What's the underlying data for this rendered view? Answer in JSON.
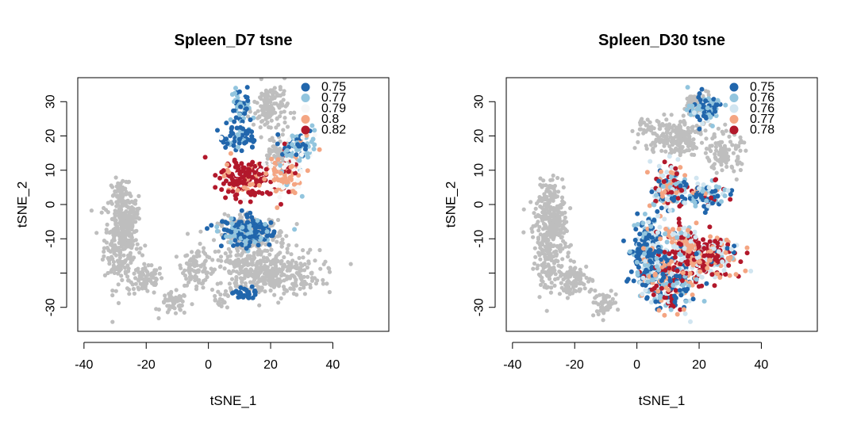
{
  "chart_data": [
    {
      "type": "scatter",
      "title": "Spleen_D7 tsne",
      "xlabel": "tSNE_1",
      "ylabel": "tSNE_2",
      "xlim": [
        -42,
        58
      ],
      "ylim": [
        -37,
        37
      ],
      "xticks": [
        -40,
        -20,
        0,
        20,
        40
      ],
      "xtick_labels": [
        "-40",
        "-20",
        "0",
        "20",
        "40"
      ],
      "yticks": [
        30,
        20,
        10,
        0,
        -10,
        -30
      ],
      "ytick_labels": [
        "30",
        "20",
        "10",
        "0",
        "-10",
        "-30"
      ],
      "grid": false,
      "legend_position": "top-right",
      "background_color": "#bebebe",
      "series": [
        {
          "name": "0.75",
          "color": "#2166ac"
        },
        {
          "name": "0.77",
          "color": "#92c5de"
        },
        {
          "name": "0.79",
          "color": "#f7f7f7"
        },
        {
          "name": "0.8",
          "color": "#f4a582"
        },
        {
          "name": "0.82",
          "color": "#b2182b"
        }
      ],
      "background_clusters": [
        {
          "cx": -28,
          "cy": -10,
          "rx": 5,
          "ry": 13
        },
        {
          "cx": -28,
          "cy": 3,
          "rx": 3,
          "ry": 3
        },
        {
          "cx": -20,
          "cy": -22,
          "rx": 5,
          "ry": 4
        },
        {
          "cx": -11,
          "cy": -29,
          "rx": 4,
          "ry": 3
        },
        {
          "cx": -4,
          "cy": -18,
          "rx": 4,
          "ry": 5
        },
        {
          "cx": 18,
          "cy": -20,
          "rx": 16,
          "ry": 6
        },
        {
          "cx": 14,
          "cy": -9,
          "rx": 10,
          "ry": 5
        },
        {
          "cx": 20,
          "cy": 28,
          "rx": 5,
          "ry": 7
        },
        {
          "cx": 22,
          "cy": 14,
          "rx": 4,
          "ry": 4
        },
        {
          "cx": -26,
          "cy": -4,
          "rx": 3,
          "ry": 6
        },
        {
          "cx": 4,
          "cy": -28,
          "rx": 2,
          "ry": 2
        }
      ],
      "colored_clusters": [
        {
          "cx": 10,
          "cy": 28,
          "rx": 3,
          "ry": 5,
          "weights": [
            0.5,
            0.45,
            0.05,
            0,
            0
          ]
        },
        {
          "cx": 10,
          "cy": 19,
          "rx": 5,
          "ry": 3,
          "weights": [
            0.8,
            0.15,
            0.05,
            0,
            0
          ]
        },
        {
          "cx": 12,
          "cy": 8,
          "rx": 7,
          "ry": 5,
          "weights": [
            0,
            0,
            0.05,
            0.15,
            0.8
          ]
        },
        {
          "cx": 25,
          "cy": 9,
          "rx": 5,
          "ry": 6,
          "weights": [
            0,
            0.05,
            0.3,
            0.55,
            0.1
          ]
        },
        {
          "cx": 29,
          "cy": 17,
          "rx": 5,
          "ry": 4,
          "weights": [
            0.25,
            0.5,
            0.15,
            0.1,
            0
          ]
        },
        {
          "cx": 12,
          "cy": -8,
          "rx": 8,
          "ry": 4,
          "weights": [
            0.7,
            0.3,
            0,
            0,
            0
          ]
        },
        {
          "cx": 12,
          "cy": -26,
          "rx": 3,
          "ry": 2,
          "weights": [
            0.9,
            0.1,
            0,
            0,
            0
          ]
        }
      ]
    },
    {
      "type": "scatter",
      "title": "Spleen_D30 tsne",
      "xlabel": "tSNE_1",
      "ylabel": "tSNE_2",
      "xlim": [
        -42,
        58
      ],
      "ylim": [
        -37,
        37
      ],
      "xticks": [
        -40,
        -20,
        0,
        20,
        40
      ],
      "xtick_labels": [
        "-40",
        "-20",
        "0",
        "20",
        "40"
      ],
      "yticks": [
        30,
        20,
        10,
        0,
        -10,
        -30
      ],
      "ytick_labels": [
        "30",
        "20",
        "10",
        "0",
        "-10",
        "-30"
      ],
      "grid": false,
      "legend_position": "top-right",
      "background_color": "#bebebe",
      "series": [
        {
          "name": "0.75",
          "color": "#2166ac"
        },
        {
          "name": "0.76",
          "color": "#92c5de"
        },
        {
          "name": "0.76",
          "color": "#d1e5f0"
        },
        {
          "name": "0.77",
          "color": "#f4a582"
        },
        {
          "name": "0.78",
          "color": "#b2182b"
        }
      ],
      "background_clusters": [
        {
          "cx": -28,
          "cy": -10,
          "rx": 5,
          "ry": 13
        },
        {
          "cx": -28,
          "cy": 3,
          "rx": 3,
          "ry": 3
        },
        {
          "cx": -20,
          "cy": -22,
          "rx": 5,
          "ry": 4
        },
        {
          "cx": -11,
          "cy": -29,
          "rx": 4,
          "ry": 3
        },
        {
          "cx": 12,
          "cy": 20,
          "rx": 9,
          "ry": 5
        },
        {
          "cx": 20,
          "cy": 29,
          "rx": 4,
          "ry": 4
        },
        {
          "cx": 28,
          "cy": 15,
          "rx": 5,
          "ry": 5
        },
        {
          "cx": -26,
          "cy": -4,
          "rx": 3,
          "ry": 6
        },
        {
          "cx": 2,
          "cy": 23,
          "rx": 2,
          "ry": 2
        }
      ],
      "colored_clusters": [
        {
          "cx": 22,
          "cy": 28,
          "rx": 5,
          "ry": 4,
          "weights": [
            0.45,
            0.4,
            0.15,
            0,
            0
          ]
        },
        {
          "cx": 10,
          "cy": 5,
          "rx": 5,
          "ry": 6,
          "weights": [
            0.15,
            0.2,
            0.25,
            0.25,
            0.15
          ]
        },
        {
          "cx": 22,
          "cy": 3,
          "rx": 6,
          "ry": 4,
          "weights": [
            0.4,
            0.3,
            0.15,
            0.05,
            0.1
          ]
        },
        {
          "cx": 4,
          "cy": -14,
          "rx": 6,
          "ry": 9,
          "weights": [
            0.55,
            0.25,
            0.15,
            0.03,
            0.02
          ]
        },
        {
          "cx": 10,
          "cy": -23,
          "rx": 7,
          "ry": 7,
          "weights": [
            0.3,
            0.2,
            0.2,
            0.15,
            0.15
          ]
        },
        {
          "cx": 23,
          "cy": -15,
          "rx": 9,
          "ry": 6,
          "weights": [
            0.05,
            0.05,
            0.15,
            0.25,
            0.5
          ]
        },
        {
          "cx": 14,
          "cy": -10,
          "rx": 5,
          "ry": 4,
          "weights": [
            0.05,
            0.1,
            0.3,
            0.4,
            0.15
          ]
        }
      ]
    }
  ]
}
